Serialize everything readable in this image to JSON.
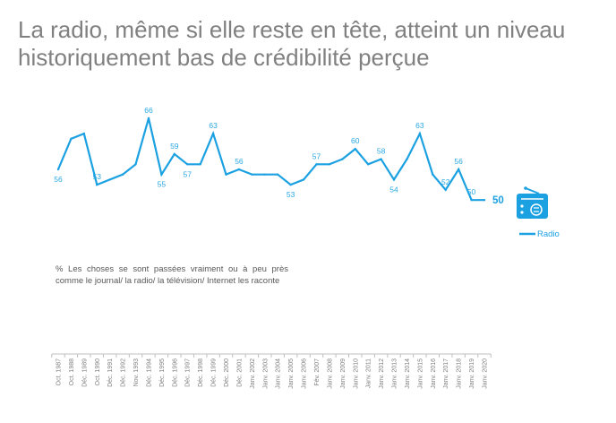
{
  "title": "La radio, même si elle reste en tête, atteint un niveau historiquement bas de crédibilité perçue",
  "note": "% Les choses se sont passées vraiment ou à peu près comme le journal/ la radio/ la télévision/ Internet les raconte",
  "colors": {
    "line": "#1ba1e2",
    "title": "#808080",
    "axis": "#bfbfbf"
  },
  "icons": {
    "legend_icon": "radio-icon"
  },
  "chart_data": {
    "type": "line",
    "title": "",
    "xlabel": "",
    "ylabel": "",
    "grid": false,
    "legend": "right",
    "categories": [
      "Oct. 1987",
      "Oct. 1988",
      "Déc. 1989",
      "Oct. 1990",
      "Déc. 1991",
      "Déc. 1992",
      "Nov. 1993",
      "Déc. 1994",
      "Déc. 1995",
      "Déc. 1996",
      "Déc. 1997",
      "Déc. 1998",
      "Déc. 1999",
      "Déc. 2000",
      "Déc. 2001",
      "Janv. 2002",
      "Janv. 2003",
      "Janv. 2004",
      "Janv. 2005",
      "Janv. 2006",
      "Fév. 2007",
      "Janv. 2008",
      "Janv. 2009",
      "Janv. 2010",
      "Janv. 2011",
      "Janv. 2012",
      "Janv. 2013",
      "Janv. 2014",
      "Janv. 2015",
      "Janv. 2016",
      "Janv. 2017",
      "Janv. 2018",
      "Janv. 2019",
      "Janv. 2020"
    ],
    "series": [
      {
        "name": "Radio",
        "values": [
          56,
          62,
          63,
          53,
          54,
          55,
          57,
          66,
          55,
          59,
          57,
          57,
          63,
          55,
          56,
          55,
          55,
          55,
          53,
          54,
          57,
          57,
          58,
          60,
          57,
          58,
          54,
          58,
          63,
          55,
          52,
          56,
          50,
          50
        ]
      }
    ],
    "data_labels": [
      {
        "index": 0,
        "text": "56",
        "placement": "below"
      },
      {
        "index": 3,
        "text": "53",
        "placement": "above"
      },
      {
        "index": 7,
        "text": "66",
        "placement": "above"
      },
      {
        "index": 8,
        "text": "55",
        "placement": "below"
      },
      {
        "index": 9,
        "text": "59",
        "placement": "above"
      },
      {
        "index": 10,
        "text": "57",
        "placement": "below"
      },
      {
        "index": 12,
        "text": "63",
        "placement": "above"
      },
      {
        "index": 14,
        "text": "56",
        "placement": "above"
      },
      {
        "index": 18,
        "text": "53",
        "placement": "below"
      },
      {
        "index": 20,
        "text": "57",
        "placement": "above"
      },
      {
        "index": 23,
        "text": "60",
        "placement": "above"
      },
      {
        "index": 25,
        "text": "58",
        "placement": "above"
      },
      {
        "index": 26,
        "text": "54",
        "placement": "below"
      },
      {
        "index": 28,
        "text": "63",
        "placement": "above"
      },
      {
        "index": 30,
        "text": "52",
        "placement": "above"
      },
      {
        "index": 31,
        "text": "56",
        "placement": "above"
      },
      {
        "index": 32,
        "text": "50",
        "placement": "above"
      },
      {
        "index": 33,
        "text": "50",
        "placement": "right-bold"
      }
    ]
  }
}
